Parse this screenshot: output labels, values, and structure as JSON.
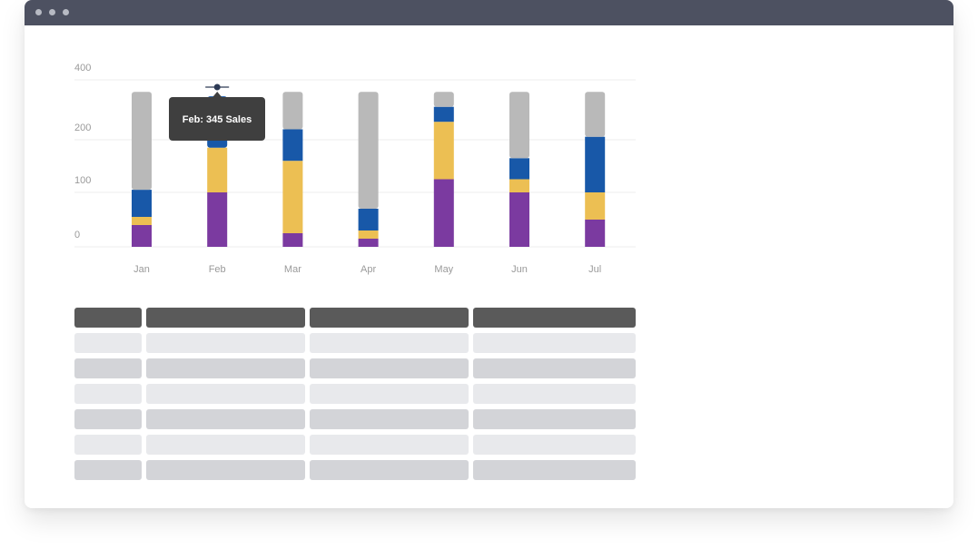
{
  "window": {
    "titlebar_color": "#4d5161",
    "controls": [
      "close-dot-icon",
      "minimize-dot-icon",
      "maximize-dot-icon"
    ]
  },
  "chart_data": {
    "type": "bar",
    "stacked": true,
    "categories": [
      "Jan",
      "Feb",
      "Mar",
      "Apr",
      "May",
      "Jun",
      "Jul"
    ],
    "y_ticks": [
      0,
      100,
      200,
      400
    ],
    "grid": true,
    "series": [
      {
        "color": "#7b3aa0",
        "values": [
          40,
          100,
          25,
          15,
          125,
          100,
          50
        ]
      },
      {
        "color": "#ecbf53",
        "values": [
          15,
          85,
          135,
          15,
          135,
          25,
          50
        ]
      },
      {
        "color": "#1858a8",
        "values": [
          50,
          160,
          75,
          40,
          50,
          40,
          110
        ]
      },
      {
        "color": "#b9b9b9",
        "values": [
          255,
          0,
          125,
          290,
          50,
          195,
          150
        ]
      }
    ],
    "tooltip": {
      "category": "Feb",
      "text": "Feb: 345 Sales"
    }
  },
  "table": {
    "header_color": "#5a5a5a",
    "row_colors": [
      "#e8e9ec",
      "#d3d4d8"
    ],
    "row_count": 6,
    "column_count": 4
  }
}
